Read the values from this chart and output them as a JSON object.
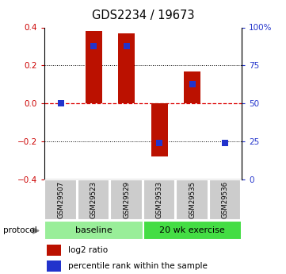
{
  "title": "GDS2234 / 19673",
  "samples": [
    "GSM29507",
    "GSM29523",
    "GSM29529",
    "GSM29533",
    "GSM29535",
    "GSM29536"
  ],
  "log2_ratio": [
    0.0,
    0.38,
    0.37,
    -0.28,
    0.17,
    0.0
  ],
  "percentile_rank_y": [
    0.0,
    0.3,
    0.3,
    -0.21,
    0.1,
    -0.21
  ],
  "bar_color": "#bb1100",
  "dot_color": "#2233cc",
  "ylim": [
    -0.4,
    0.4
  ],
  "yticks": [
    -0.4,
    -0.2,
    0.0,
    0.2,
    0.4
  ],
  "right_ytick_positions": [
    -0.4,
    -0.2,
    0.0,
    0.2,
    0.4
  ],
  "right_ytick_labels": [
    "0",
    "25",
    "50",
    "75",
    "100%"
  ],
  "groups": [
    {
      "label": "baseline",
      "start": 0,
      "end": 3,
      "color": "#99ee99"
    },
    {
      "label": "20 wk exercise",
      "start": 3,
      "end": 6,
      "color": "#44dd44"
    }
  ],
  "protocol_label": "protocol",
  "bar_width": 0.5,
  "dot_size": 35,
  "dot_marker": "s",
  "hline_color": "#dd0000",
  "hline_style": "--",
  "grid_color": "black",
  "grid_style": ":",
  "sample_box_color": "#cccccc",
  "legend_items": [
    {
      "label": "log2 ratio",
      "color": "#bb1100"
    },
    {
      "label": "percentile rank within the sample",
      "color": "#2233cc"
    }
  ]
}
